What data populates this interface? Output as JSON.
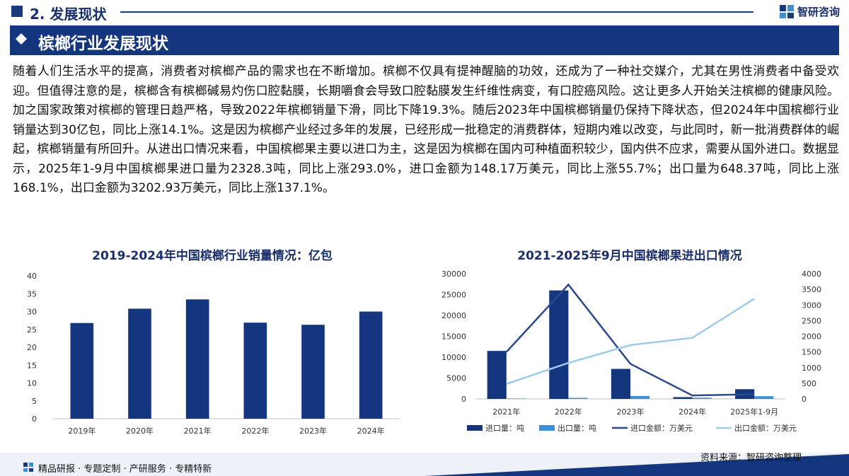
{
  "header": {
    "section_title": "2. 发展现状",
    "logo_text": "智研咨询"
  },
  "banner": {
    "title": "槟榔行业发展现状"
  },
  "paragraph": "随着人们生活水平的提高，消费者对槟榔产品的需求也在不断增加。槟榔不仅具有提神醒脑的功效，还成为了一种社交媒介，尤其在男性消费者中备受欢迎。但值得注意的是，槟榔含有槟榔碱易灼伤口腔黏膜，长期嚼食会导致口腔黏膜发生纤维性病变，有口腔癌风险。这让更多人开始关注槟榔的健康风险。加之国家政策对槟榔的管理日趋严格，导致2022年槟榔销量下滑，同比下降19.3%。随后2023年中国槟榔销量仍保持下降状态，但2024年中国槟榔行业销量达到30亿包，同比上涨14.1%。这是因为槟榔产业经过多年的发展，已经形成一批稳定的消费群体，短期内难以改变，与此同时，新一批消费群体的崛起，槟榔销量有所回升。从进出口情况来看，中国槟榔果主要以进口为主，这是因为槟榔在国内可种植面积较少，国内供不应求，需要从国外进口。数据显示，2025年1-9月中国槟榔果进口量为2328.3吨，同比上涨293.0%，进口金额为148.17万美元，同比上涨55.7%；出口量为648.37吨，同比上涨168.1%，出口金额为3202.93万美元，同比上涨137.1%。",
  "chart_data": [
    {
      "type": "bar",
      "title": "2019-2024年中国槟榔行业销量情况：亿包",
      "categories": [
        "2019年",
        "2020年",
        "2021年",
        "2022年",
        "2023年",
        "2024年"
      ],
      "values": [
        26.8,
        30.8,
        33.4,
        26.9,
        26.3,
        30.0
      ],
      "ylim": [
        0,
        40
      ],
      "yticks": [
        "0",
        "5",
        "10",
        "15",
        "20",
        "25",
        "30",
        "35",
        "40"
      ],
      "grid": false,
      "color": "#14367e"
    },
    {
      "type": "bar+line",
      "title": "2021-2025年9月中国槟榔果进出口情况",
      "categories": [
        "2021年",
        "2022年",
        "2023年",
        "2024年",
        "2025年1-9月"
      ],
      "ylim_left": [
        0,
        30000
      ],
      "ylim_right": [
        0,
        4000
      ],
      "yticks_left": [
        "0",
        "5000",
        "10000",
        "15000",
        "20000",
        "25000",
        "30000"
      ],
      "yticks_right": [
        "0",
        "500",
        "1000",
        "1500",
        "2000",
        "2500",
        "3000",
        "3500",
        "4000"
      ],
      "series": [
        {
          "name": "进口量：吨",
          "kind": "bar",
          "axis": "left",
          "color": "#14367e",
          "values": [
            11500,
            26000,
            7200,
            430,
            2328.3
          ]
        },
        {
          "name": "出口量：吨",
          "kind": "bar",
          "axis": "left",
          "color": "#3d8fd6",
          "values": [
            100,
            250,
            700,
            280,
            648.37
          ]
        },
        {
          "name": "进口金额：万美元",
          "kind": "line",
          "axis": "right",
          "color": "#2b4a8c",
          "values": [
            1500,
            3650,
            1120,
            110,
            148.17
          ]
        },
        {
          "name": "出口金额：万美元",
          "kind": "line",
          "axis": "right",
          "color": "#9ccbec",
          "values": [
            480,
            1150,
            1720,
            1950,
            3202.93
          ]
        }
      ],
      "legend_position": "bottom"
    }
  ],
  "watermark": "智研咨询",
  "source": "资料来源：智研咨询整理",
  "footer": {
    "slogan": "精品研报 · 专题定制 · 产研服务 · 专精特新"
  }
}
